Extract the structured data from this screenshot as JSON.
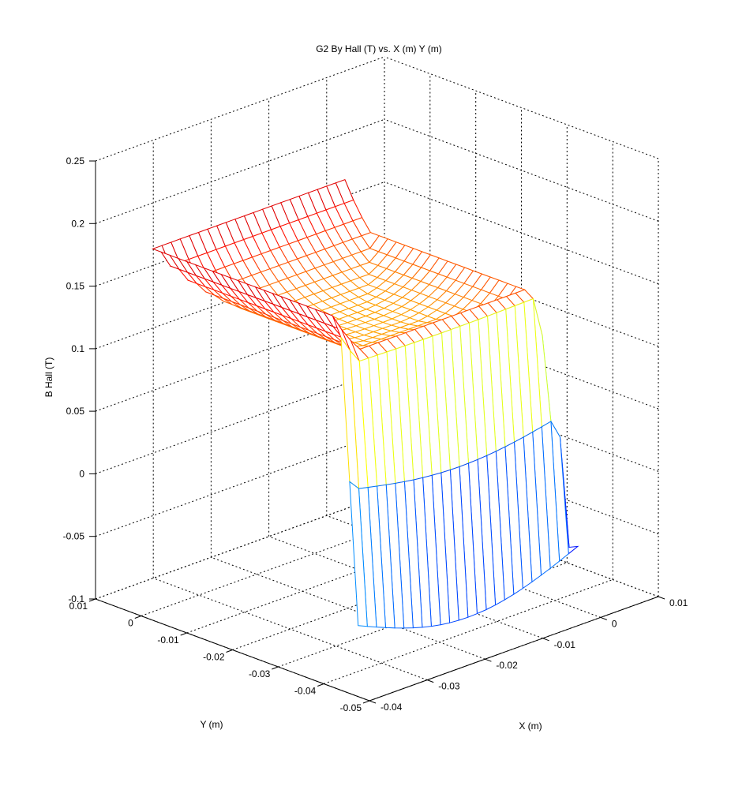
{
  "chart_data": {
    "type": "surface",
    "title": "G2 By Hall (T) vs. X (m) Y (m)",
    "xlabel": "X (m)",
    "ylabel": "Y (m)",
    "zlabel": "B Hall (T)",
    "xlim": [
      -0.04,
      0.01
    ],
    "ylim": [
      -0.05,
      0.01
    ],
    "zlim": [
      -0.1,
      0.25
    ],
    "x_ticks": [
      "-0.04",
      "-0.03",
      "-0.02",
      "-0.01",
      "0",
      "0.01"
    ],
    "y_ticks": [
      "-0.05",
      "-0.04",
      "-0.03",
      "-0.02",
      "-0.01",
      "0",
      "0.01"
    ],
    "z_ticks": [
      "-0.1",
      "-0.05",
      "0",
      "0.05",
      "0.1",
      "0.15",
      "0.2",
      "0.25"
    ],
    "grid": true,
    "colormap": "jet",
    "surface_range": {
      "x": [
        -0.038,
        0.0
      ],
      "y": [
        -0.045,
        0.0
      ]
    },
    "surface_shape": {
      "edge_bands": "y near -0.045 and x near 0.0 high plateau ~0.17, falling to ~-0.07 at the outer edges",
      "center_min": 0.13,
      "edge_max": 0.21,
      "outer_min": -0.07
    }
  }
}
